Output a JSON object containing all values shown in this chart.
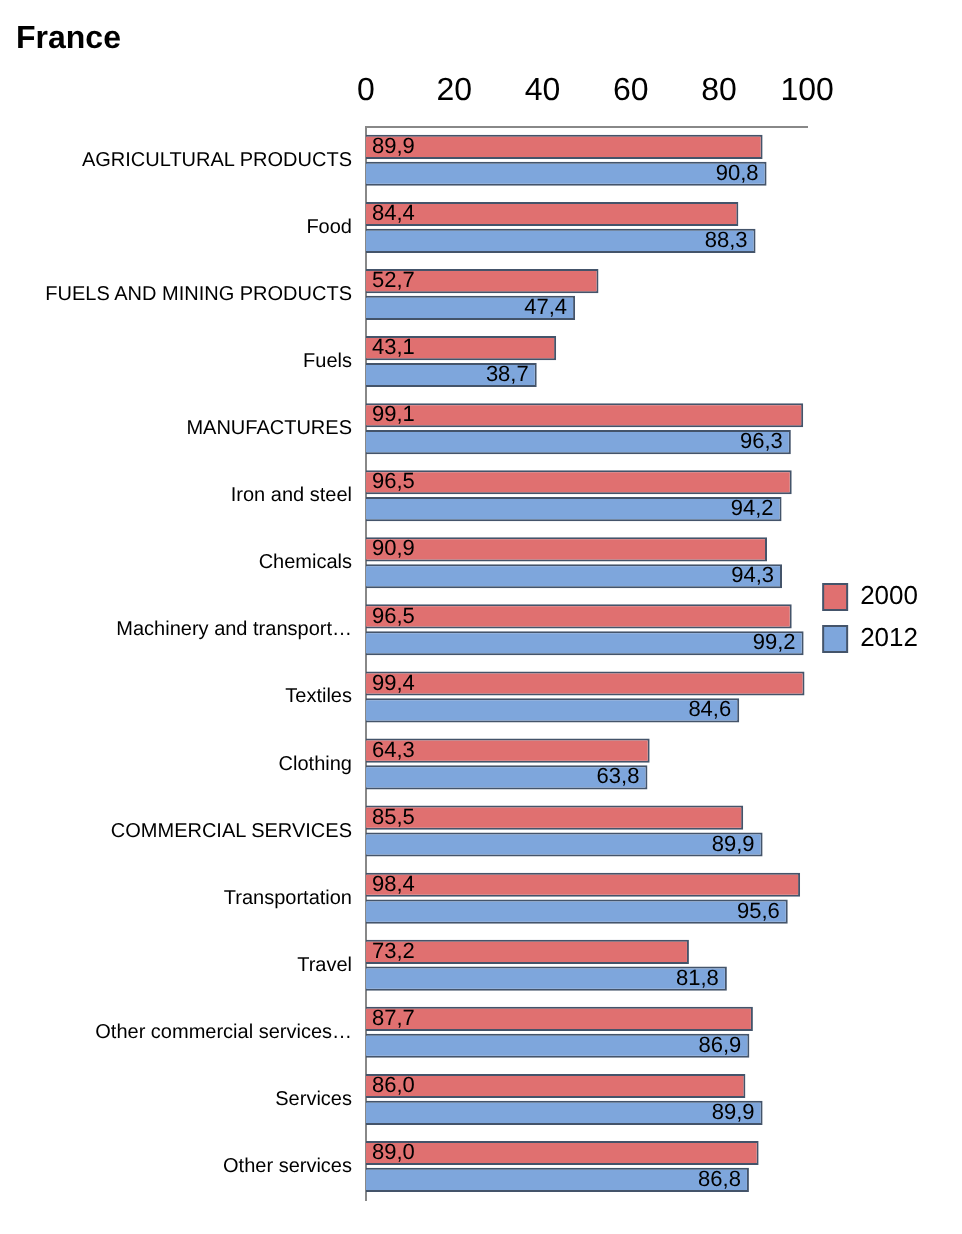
{
  "chart_data": {
    "type": "bar",
    "orientation": "horizontal",
    "title": "France",
    "categories": [
      "AGRICULTURAL PRODUCTS",
      "Food",
      "FUELS AND MINING PRODUCTS",
      "Fuels",
      "MANUFACTURES",
      "Iron and steel",
      "Chemicals",
      "Machinery and transport…",
      "Textiles",
      "Clothing",
      "COMMERCIAL SERVICES",
      "Transportation",
      "Travel",
      "Other commercial services…",
      "Services",
      "Other services"
    ],
    "series": [
      {
        "name": "2000",
        "color": "#e07070",
        "values": [
          89.9,
          84.4,
          52.7,
          43.1,
          99.1,
          96.5,
          90.9,
          96.5,
          99.4,
          64.3,
          85.5,
          98.4,
          73.2,
          87.7,
          86.0,
          89.0
        ],
        "value_labels": [
          "89,9",
          "84,4",
          "52,7",
          "43,1",
          "99,1",
          "96,5",
          "90,9",
          "96,5",
          "99,4",
          "64,3",
          "85,5",
          "98,4",
          "73,2",
          "87,7",
          "86,0",
          "89,0"
        ]
      },
      {
        "name": "2012",
        "color": "#7ea6dc",
        "values": [
          90.8,
          88.3,
          47.4,
          38.7,
          96.3,
          94.2,
          94.3,
          99.2,
          84.6,
          63.8,
          89.9,
          95.6,
          81.8,
          86.9,
          89.9,
          86.8
        ],
        "value_labels": [
          "90,8",
          "88,3",
          "47,4",
          "38,7",
          "96,3",
          "94,2",
          "94,3",
          "99,2",
          "84,6",
          "63,8",
          "89,9",
          "95,6",
          "81,8",
          "86,9",
          "89,9",
          "86,8"
        ]
      }
    ],
    "xlim": [
      0,
      100
    ],
    "xticks": [
      0,
      20,
      40,
      60,
      80,
      100
    ],
    "grid": false,
    "legend": "right"
  }
}
